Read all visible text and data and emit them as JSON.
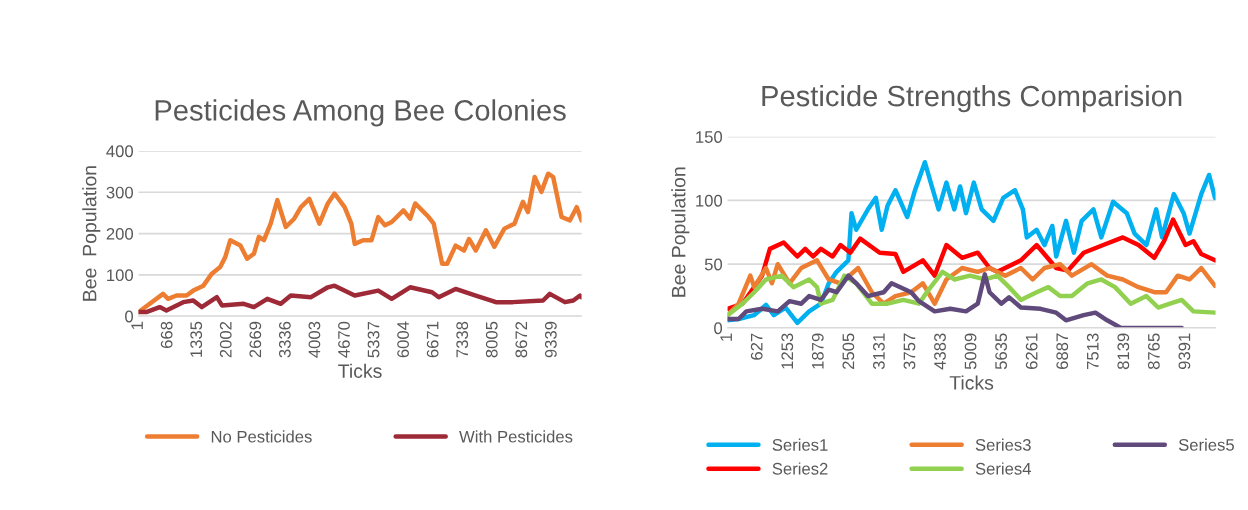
{
  "chart_data": [
    {
      "type": "line",
      "title": "Pesticides Among Bee Colonies",
      "xlabel": "Ticks",
      "ylabel": "Bee  Population",
      "xlim": [
        1,
        10000
      ],
      "xticks": [
        1,
        668,
        1335,
        2002,
        2669,
        3336,
        4003,
        4670,
        5337,
        6004,
        6671,
        7338,
        8005,
        8672,
        9339
      ],
      "ylim": [
        0,
        400
      ],
      "yticks": [
        0,
        100,
        200,
        300,
        400
      ],
      "grid": "y",
      "legend": "bottom",
      "marker": "none",
      "line_style": "solid",
      "series": [
        {
          "name": "No Pesticides",
          "color": "#ed7d31",
          "x": [
            1,
            554,
            668,
            858,
            1085,
            1237,
            1465,
            1655,
            1844,
            1958,
            2072,
            2300,
            2452,
            2604,
            2717,
            2831,
            2983,
            3135,
            3325,
            3514,
            3666,
            3855,
            4083,
            4273,
            4424,
            4652,
            4804,
            4880,
            5070,
            5260,
            5411,
            5563,
            5715,
            5980,
            6131,
            6245,
            6549,
            6663,
            6853,
            6967,
            7157,
            7347,
            7461,
            7613,
            7841,
            8030,
            8258,
            8486,
            8676,
            8790,
            8942,
            9093,
            9245,
            9359,
            9549,
            9738,
            9890,
            10000
          ],
          "values": [
            10,
            54,
            42,
            50,
            50,
            62,
            74,
            103,
            119,
            143,
            184,
            171,
            139,
            151,
            192,
            184,
            224,
            281,
            216,
            236,
            264,
            284,
            224,
            273,
            297,
            264,
            224,
            175,
            184,
            184,
            240,
            220,
            228,
            256,
            236,
            273,
            240,
            224,
            127,
            127,
            171,
            159,
            187,
            159,
            208,
            168,
            212,
            224,
            277,
            252,
            337,
            301,
            345,
            337,
            240,
            232,
            264,
            232
          ]
        },
        {
          "name": "With Pesticides",
          "color": "#9e2a37",
          "x": [
            1,
            175,
            479,
            630,
            1010,
            1237,
            1427,
            1769,
            1883,
            2376,
            2604,
            2907,
            3211,
            3438,
            3894,
            4273,
            4424,
            4880,
            5411,
            5715,
            6131,
            6625,
            6777,
            7157,
            7613,
            8068,
            8448,
            9131,
            9283,
            9624,
            9814,
            9966,
            10000
          ],
          "values": [
            10,
            10,
            22,
            14,
            34,
            38,
            22,
            46,
            26,
            30,
            22,
            42,
            30,
            50,
            46,
            70,
            74,
            50,
            62,
            42,
            70,
            58,
            46,
            66,
            50,
            34,
            34,
            38,
            54,
            34,
            38,
            50,
            46
          ]
        }
      ]
    },
    {
      "type": "line",
      "title": "Pesticide Strengths Comparision",
      "xlabel": "Ticks",
      "ylabel": "Bee Population",
      "xlim": [
        1,
        10000
      ],
      "xticks": [
        1,
        627,
        1253,
        1879,
        2505,
        3131,
        3757,
        4383,
        5009,
        5635,
        6261,
        6887,
        7513,
        8139,
        8765,
        9391
      ],
      "ylim": [
        0,
        150
      ],
      "yticks": [
        0,
        50,
        100,
        150
      ],
      "grid": "y",
      "legend": "bottom",
      "marker": "none",
      "line_style": "solid",
      "series": [
        {
          "name": "Series1",
          "color": "#00b0f0",
          "x": [
            1,
            226,
            547,
            788,
            949,
            1190,
            1431,
            1672,
            1913,
            2074,
            2235,
            2476,
            2540,
            2637,
            2878,
            3039,
            3160,
            3280,
            3441,
            3682,
            3842,
            4043,
            4164,
            4325,
            4485,
            4646,
            4766,
            4887,
            5047,
            5208,
            5449,
            5650,
            5891,
            6052,
            6132,
            6333,
            6494,
            6655,
            6735,
            6936,
            7097,
            7257,
            7498,
            7659,
            7900,
            8181,
            8342,
            8583,
            8784,
            8904,
            9145,
            9346,
            9466,
            9707,
            9868,
            9989
          ],
          "values": [
            6,
            7,
            10,
            18,
            10,
            16,
            4,
            13,
            19,
            35,
            44,
            53,
            90,
            77,
            93,
            102,
            77,
            96,
            108,
            87,
            108,
            130,
            114,
            93,
            114,
            93,
            111,
            90,
            114,
            93,
            84,
            102,
            108,
            93,
            71,
            77,
            65,
            80,
            56,
            84,
            59,
            84,
            93,
            71,
            99,
            90,
            74,
            65,
            93,
            71,
            105,
            90,
            74,
            105,
            120,
            102
          ]
        },
        {
          "name": "Series2",
          "color": "#ff0000",
          "x": [
            1,
            306,
            708,
            868,
            1150,
            1431,
            1592,
            1753,
            1913,
            2154,
            2315,
            2516,
            2717,
            3119,
            3441,
            3602,
            4003,
            4244,
            4485,
            4806,
            5127,
            5369,
            5529,
            6011,
            6333,
            6534,
            6735,
            6976,
            7298,
            7699,
            8101,
            8422,
            8744,
            8945,
            9129,
            9386,
            9547,
            9707,
            9989
          ],
          "values": [
            15,
            19,
            41,
            62,
            67,
            56,
            62,
            56,
            62,
            56,
            65,
            59,
            70,
            59,
            58,
            44,
            53,
            41,
            65,
            55,
            59,
            47,
            44,
            53,
            65,
            56,
            47,
            45,
            59,
            65,
            71,
            65,
            55,
            68,
            85,
            65,
            68,
            58,
            53
          ]
        },
        {
          "name": "Series3",
          "color": "#ed7d31",
          "x": [
            1,
            226,
            467,
            547,
            788,
            909,
            1029,
            1270,
            1511,
            1833,
            2074,
            2315,
            2677,
            2958,
            3200,
            3441,
            3762,
            4003,
            4244,
            4485,
            4806,
            5127,
            5369,
            5690,
            6011,
            6252,
            6494,
            6815,
            7056,
            7458,
            7779,
            8101,
            8422,
            8744,
            8985,
            9226,
            9466,
            9707,
            9989
          ],
          "values": [
            10,
            19,
            41,
            32,
            47,
            35,
            50,
            35,
            47,
            53,
            38,
            35,
            47,
            28,
            19,
            25,
            28,
            35,
            19,
            38,
            47,
            44,
            47,
            41,
            47,
            38,
            47,
            50,
            41,
            50,
            41,
            38,
            32,
            28,
            28,
            41,
            38,
            47,
            33
          ]
        },
        {
          "name": "Series4",
          "color": "#92d050",
          "x": [
            1,
            306,
            547,
            788,
            1110,
            1351,
            1672,
            1833,
            1913,
            2154,
            2395,
            2637,
            2958,
            3280,
            3602,
            3923,
            4083,
            4405,
            4646,
            4967,
            5288,
            5529,
            5770,
            6011,
            6333,
            6574,
            6815,
            7056,
            7378,
            7659,
            7940,
            8262,
            8583,
            8824,
            9065,
            9306,
            9547,
            9989
          ],
          "values": [
            10,
            19,
            28,
            38,
            41,
            32,
            38,
            32,
            19,
            22,
            41,
            35,
            19,
            19,
            22,
            19,
            28,
            44,
            38,
            41,
            38,
            41,
            32,
            22,
            28,
            32,
            25,
            25,
            35,
            38,
            32,
            19,
            25,
            16,
            19,
            22,
            13,
            12
          ]
        },
        {
          "name": "Series5",
          "color": "#604a7b",
          "x": [
            1,
            226,
            386,
            708,
            1029,
            1270,
            1511,
            1672,
            1913,
            2074,
            2235,
            2476,
            2637,
            2878,
            3200,
            3361,
            3762,
            3923,
            4244,
            4566,
            4887,
            5127,
            5272,
            5369,
            5609,
            5770,
            6011,
            6413,
            6735,
            6936,
            7298,
            7539,
            7779,
            8061,
            9306
          ],
          "values": [
            7,
            7,
            13,
            15,
            13,
            21,
            19,
            25,
            22,
            30,
            28,
            41,
            35,
            25,
            28,
            35,
            28,
            21,
            13,
            15,
            13,
            19,
            42,
            28,
            19,
            24,
            16,
            15,
            12,
            6,
            10,
            12,
            6,
            0,
            0
          ]
        }
      ]
    }
  ]
}
